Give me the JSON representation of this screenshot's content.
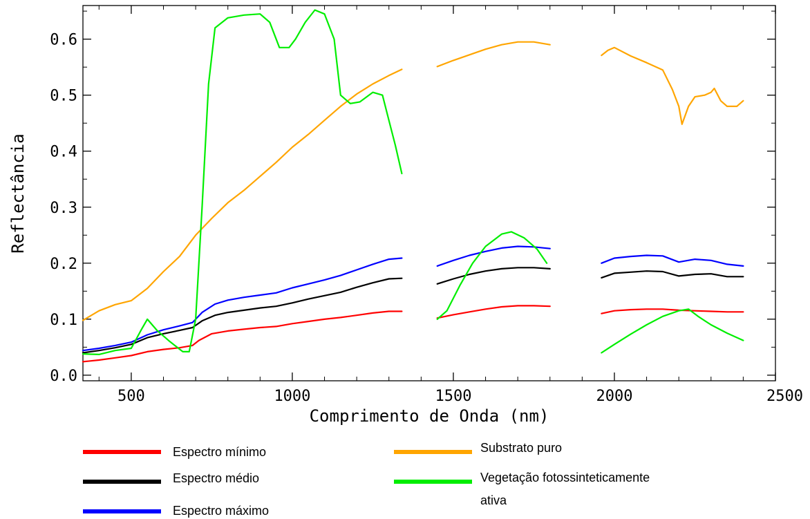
{
  "chart_data": {
    "type": "line",
    "title": "",
    "xlabel": "Comprimento de Onda (nm)",
    "ylabel": "Reflectância",
    "xlim": [
      350,
      2500
    ],
    "ylim": [
      -0.01,
      0.66
    ],
    "x_ticks": [
      500,
      1000,
      1500,
      2000,
      2500
    ],
    "y_ticks": [
      0.0,
      0.1,
      0.2,
      0.3,
      0.4,
      0.5,
      0.6
    ],
    "x_tick_labels": [
      "500",
      "1000",
      "1500",
      "2000",
      "2500"
    ],
    "y_tick_labels": [
      "0.0",
      "0.1",
      "0.2",
      "0.3",
      "0.4",
      "0.5",
      "0.6"
    ],
    "grid": false,
    "legend_position": "bottom",
    "series": [
      {
        "name": "Espectro mínimo",
        "color": "#ff0000",
        "segments": [
          [
            [
              350,
              0.024
            ],
            [
              400,
              0.027
            ],
            [
              450,
              0.031
            ],
            [
              500,
              0.035
            ],
            [
              550,
              0.042
            ],
            [
              600,
              0.046
            ],
            [
              650,
              0.049
            ],
            [
              690,
              0.053
            ],
            [
              710,
              0.062
            ],
            [
              750,
              0.074
            ],
            [
              800,
              0.079
            ],
            [
              850,
              0.082
            ],
            [
              900,
              0.085
            ],
            [
              950,
              0.087
            ],
            [
              1000,
              0.092
            ],
            [
              1050,
              0.096
            ],
            [
              1100,
              0.1
            ],
            [
              1150,
              0.103
            ],
            [
              1200,
              0.107
            ],
            [
              1250,
              0.111
            ],
            [
              1300,
              0.114
            ],
            [
              1340,
              0.114
            ]
          ],
          [
            [
              1450,
              0.102
            ],
            [
              1500,
              0.108
            ],
            [
              1550,
              0.113
            ],
            [
              1600,
              0.118
            ],
            [
              1650,
              0.122
            ],
            [
              1700,
              0.124
            ],
            [
              1750,
              0.124
            ],
            [
              1800,
              0.123
            ]
          ],
          [
            [
              1960,
              0.11
            ],
            [
              2000,
              0.115
            ],
            [
              2050,
              0.117
            ],
            [
              2100,
              0.118
            ],
            [
              2150,
              0.118
            ],
            [
              2200,
              0.116
            ],
            [
              2250,
              0.115
            ],
            [
              2300,
              0.114
            ],
            [
              2350,
              0.113
            ],
            [
              2400,
              0.113
            ]
          ]
        ]
      },
      {
        "name": "Espectro médio",
        "color": "#000000",
        "segments": [
          [
            [
              350,
              0.04
            ],
            [
              400,
              0.044
            ],
            [
              450,
              0.049
            ],
            [
              500,
              0.055
            ],
            [
              550,
              0.067
            ],
            [
              600,
              0.074
            ],
            [
              650,
              0.08
            ],
            [
              690,
              0.085
            ],
            [
              720,
              0.097
            ],
            [
              760,
              0.107
            ],
            [
              800,
              0.112
            ],
            [
              850,
              0.116
            ],
            [
              900,
              0.12
            ],
            [
              950,
              0.123
            ],
            [
              1000,
              0.129
            ],
            [
              1050,
              0.136
            ],
            [
              1100,
              0.142
            ],
            [
              1150,
              0.148
            ],
            [
              1200,
              0.157
            ],
            [
              1250,
              0.165
            ],
            [
              1300,
              0.172
            ],
            [
              1340,
              0.173
            ]
          ],
          [
            [
              1450,
              0.163
            ],
            [
              1500,
              0.172
            ],
            [
              1550,
              0.18
            ],
            [
              1600,
              0.186
            ],
            [
              1650,
              0.19
            ],
            [
              1700,
              0.192
            ],
            [
              1750,
              0.192
            ],
            [
              1800,
              0.19
            ]
          ],
          [
            [
              1960,
              0.174
            ],
            [
              2000,
              0.182
            ],
            [
              2050,
              0.184
            ],
            [
              2100,
              0.186
            ],
            [
              2150,
              0.185
            ],
            [
              2200,
              0.177
            ],
            [
              2250,
              0.18
            ],
            [
              2300,
              0.181
            ],
            [
              2350,
              0.176
            ],
            [
              2400,
              0.176
            ]
          ]
        ]
      },
      {
        "name": "Espectro máximo",
        "color": "#0000ff",
        "segments": [
          [
            [
              350,
              0.044
            ],
            [
              400,
              0.048
            ],
            [
              450,
              0.053
            ],
            [
              500,
              0.059
            ],
            [
              550,
              0.072
            ],
            [
              600,
              0.081
            ],
            [
              650,
              0.088
            ],
            [
              690,
              0.094
            ],
            [
              720,
              0.112
            ],
            [
              760,
              0.127
            ],
            [
              800,
              0.134
            ],
            [
              850,
              0.139
            ],
            [
              900,
              0.143
            ],
            [
              950,
              0.147
            ],
            [
              1000,
              0.156
            ],
            [
              1050,
              0.163
            ],
            [
              1100,
              0.17
            ],
            [
              1150,
              0.178
            ],
            [
              1200,
              0.188
            ],
            [
              1250,
              0.198
            ],
            [
              1300,
              0.207
            ],
            [
              1340,
              0.209
            ]
          ],
          [
            [
              1450,
              0.195
            ],
            [
              1500,
              0.205
            ],
            [
              1550,
              0.214
            ],
            [
              1600,
              0.221
            ],
            [
              1650,
              0.227
            ],
            [
              1700,
              0.23
            ],
            [
              1750,
              0.229
            ],
            [
              1800,
              0.226
            ]
          ],
          [
            [
              1960,
              0.2
            ],
            [
              2000,
              0.209
            ],
            [
              2050,
              0.212
            ],
            [
              2100,
              0.214
            ],
            [
              2150,
              0.213
            ],
            [
              2200,
              0.202
            ],
            [
              2250,
              0.207
            ],
            [
              2300,
              0.205
            ],
            [
              2350,
              0.198
            ],
            [
              2400,
              0.195
            ]
          ]
        ]
      },
      {
        "name": "Substrato puro",
        "color": "#ffa500",
        "segments": [
          [
            [
              350,
              0.098
            ],
            [
              400,
              0.115
            ],
            [
              450,
              0.126
            ],
            [
              500,
              0.133
            ],
            [
              550,
              0.155
            ],
            [
              600,
              0.185
            ],
            [
              650,
              0.212
            ],
            [
              700,
              0.25
            ],
            [
              750,
              0.28
            ],
            [
              800,
              0.308
            ],
            [
              850,
              0.33
            ],
            [
              900,
              0.355
            ],
            [
              950,
              0.38
            ],
            [
              1000,
              0.407
            ],
            [
              1050,
              0.43
            ],
            [
              1100,
              0.455
            ],
            [
              1150,
              0.48
            ],
            [
              1200,
              0.502
            ],
            [
              1250,
              0.52
            ],
            [
              1300,
              0.535
            ],
            [
              1340,
              0.546
            ]
          ],
          [
            [
              1450,
              0.551
            ],
            [
              1500,
              0.562
            ],
            [
              1550,
              0.572
            ],
            [
              1600,
              0.582
            ],
            [
              1650,
              0.59
            ],
            [
              1700,
              0.595
            ],
            [
              1750,
              0.595
            ],
            [
              1800,
              0.59
            ]
          ],
          [
            [
              1960,
              0.571
            ],
            [
              1980,
              0.58
            ],
            [
              2000,
              0.585
            ],
            [
              2050,
              0.57
            ],
            [
              2100,
              0.558
            ],
            [
              2150,
              0.545
            ],
            [
              2180,
              0.51
            ],
            [
              2200,
              0.48
            ],
            [
              2210,
              0.448
            ],
            [
              2230,
              0.48
            ],
            [
              2250,
              0.497
            ],
            [
              2280,
              0.5
            ],
            [
              2300,
              0.505
            ],
            [
              2310,
              0.512
            ],
            [
              2330,
              0.49
            ],
            [
              2350,
              0.48
            ],
            [
              2380,
              0.48
            ],
            [
              2400,
              0.49
            ]
          ]
        ]
      },
      {
        "name": "Vegetação fotossinteticamente ativa",
        "color": "#00ee00",
        "segments": [
          [
            [
              350,
              0.038
            ],
            [
              400,
              0.037
            ],
            [
              450,
              0.044
            ],
            [
              500,
              0.048
            ],
            [
              530,
              0.08
            ],
            [
              550,
              0.1
            ],
            [
              580,
              0.08
            ],
            [
              620,
              0.06
            ],
            [
              660,
              0.042
            ],
            [
              680,
              0.042
            ],
            [
              700,
              0.1
            ],
            [
              720,
              0.3
            ],
            [
              740,
              0.52
            ],
            [
              760,
              0.62
            ],
            [
              800,
              0.638
            ],
            [
              850,
              0.643
            ],
            [
              900,
              0.645
            ],
            [
              930,
              0.63
            ],
            [
              960,
              0.585
            ],
            [
              990,
              0.585
            ],
            [
              1010,
              0.6
            ],
            [
              1040,
              0.63
            ],
            [
              1070,
              0.652
            ],
            [
              1100,
              0.645
            ],
            [
              1130,
              0.6
            ],
            [
              1150,
              0.5
            ],
            [
              1180,
              0.485
            ],
            [
              1210,
              0.488
            ],
            [
              1250,
              0.505
            ],
            [
              1280,
              0.5
            ],
            [
              1300,
              0.455
            ],
            [
              1320,
              0.41
            ],
            [
              1340,
              0.36
            ]
          ],
          [
            [
              1450,
              0.1
            ],
            [
              1480,
              0.115
            ],
            [
              1520,
              0.16
            ],
            [
              1560,
              0.2
            ],
            [
              1600,
              0.23
            ],
            [
              1650,
              0.252
            ],
            [
              1680,
              0.256
            ],
            [
              1720,
              0.245
            ],
            [
              1760,
              0.225
            ],
            [
              1790,
              0.2
            ]
          ],
          [
            [
              1960,
              0.04
            ],
            [
              2000,
              0.055
            ],
            [
              2050,
              0.073
            ],
            [
              2100,
              0.09
            ],
            [
              2150,
              0.105
            ],
            [
              2200,
              0.115
            ],
            [
              2230,
              0.118
            ],
            [
              2260,
              0.105
            ],
            [
              2300,
              0.09
            ],
            [
              2350,
              0.075
            ],
            [
              2400,
              0.062
            ]
          ]
        ]
      }
    ]
  },
  "legend": {
    "items": [
      {
        "label": "Espectro mínimo",
        "color": "#ff0000"
      },
      {
        "label": "Espectro médio",
        "color": "#000000"
      },
      {
        "label": "Espectro máximo",
        "color": "#0000ff"
      },
      {
        "label": "Substrato puro",
        "color": "#ffa500"
      },
      {
        "label": "Vegetação fotossinteticamente",
        "label2": "ativa",
        "color": "#00ee00"
      }
    ]
  }
}
